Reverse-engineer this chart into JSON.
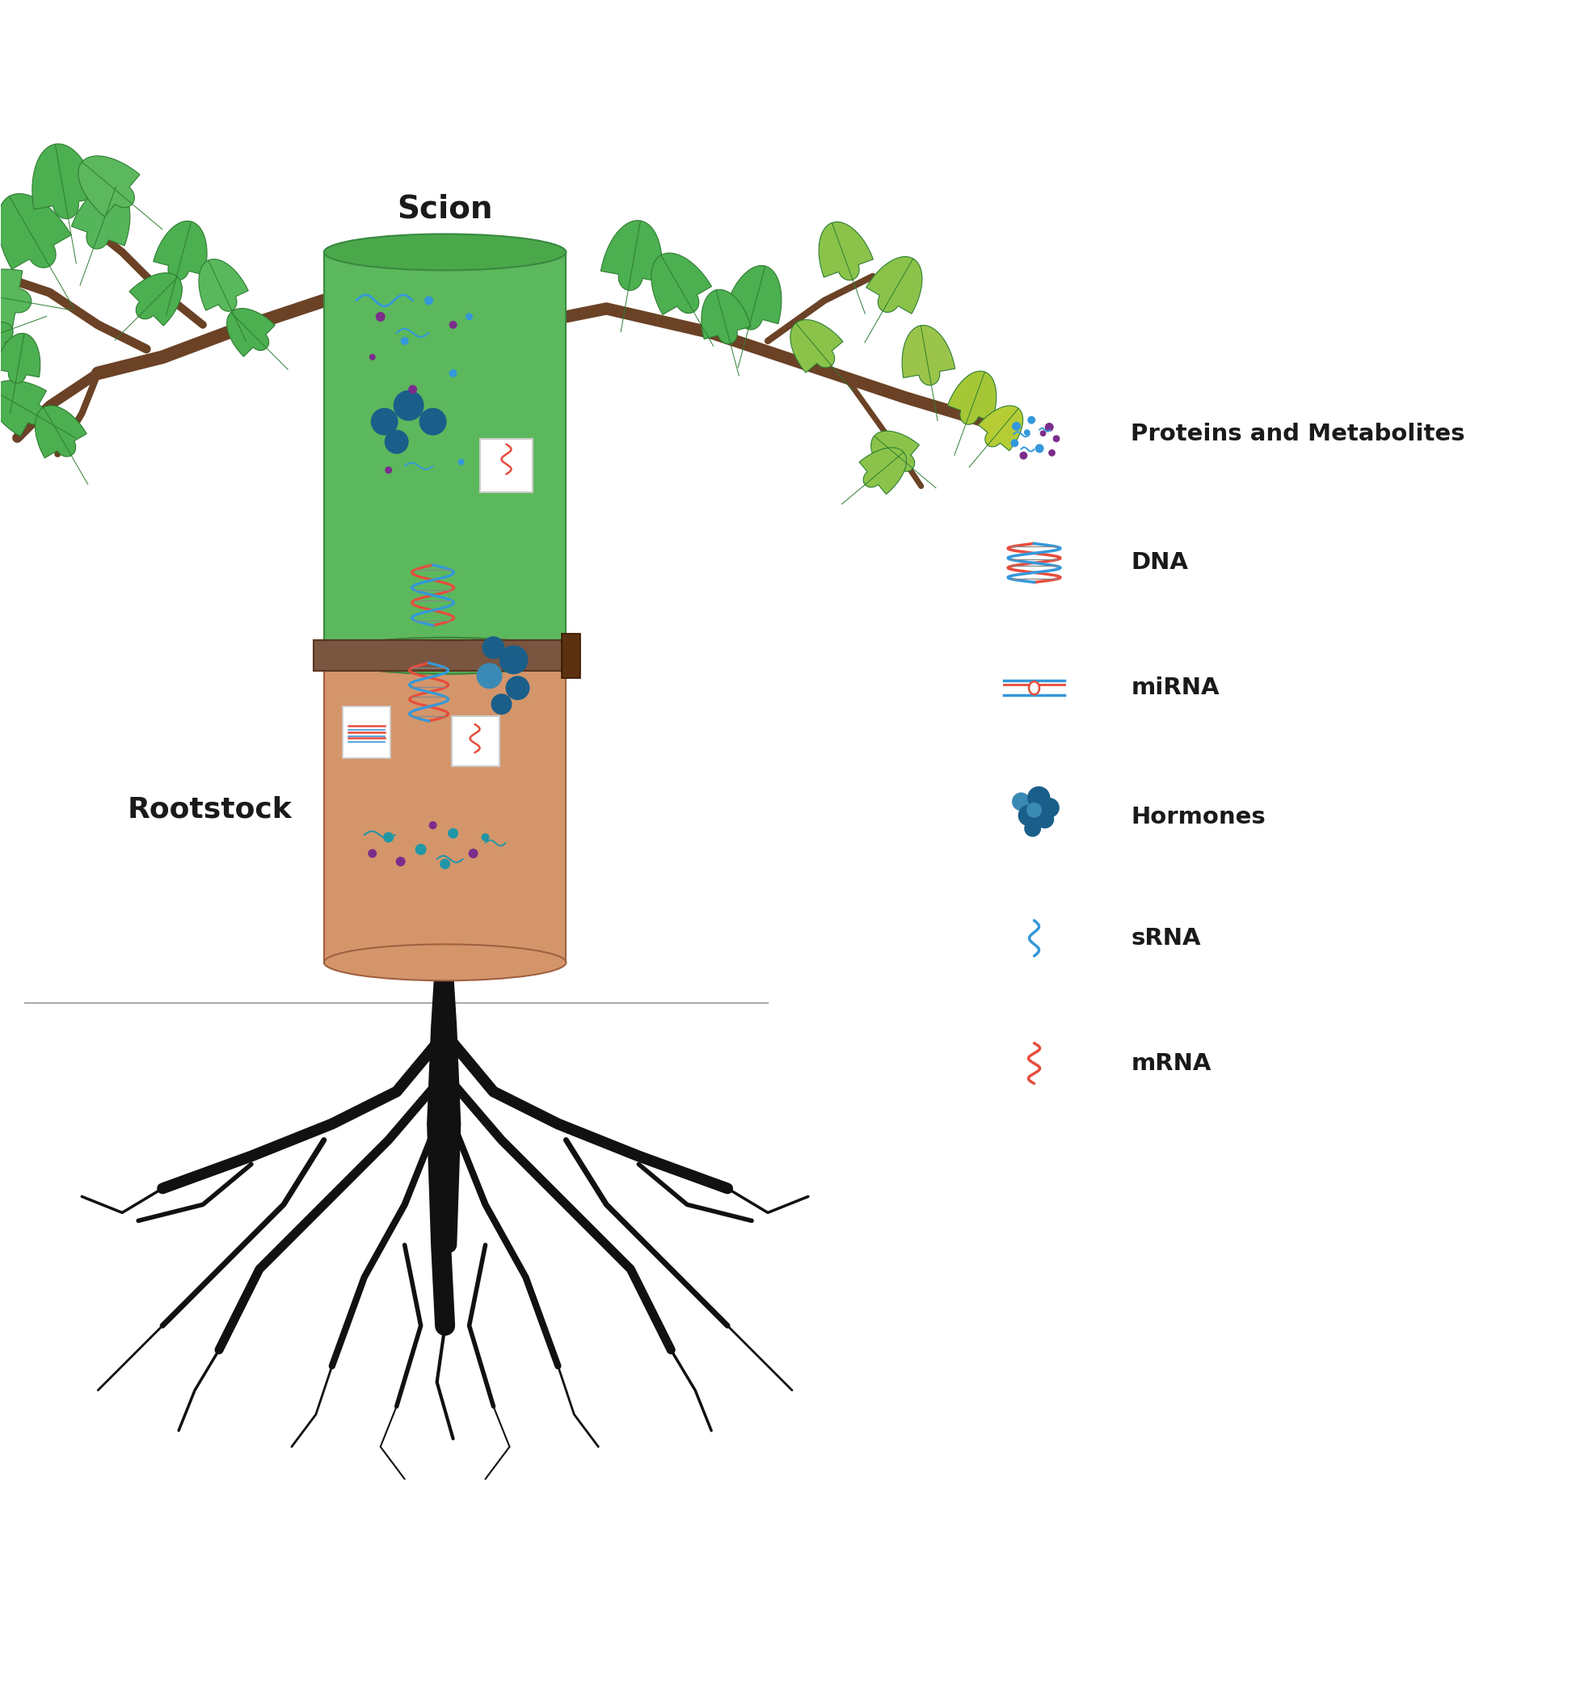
{
  "background_color": "#ffffff",
  "scion_color": "#5cb85c",
  "scion_dark": "#4aa84a",
  "scion_edge": "#3a8840",
  "rootstock_color": "#d4956a",
  "rootstock_dark": "#c07848",
  "rootstock_edge": "#a06040",
  "joint_color": "#7a5540",
  "joint_edge": "#5a3520",
  "scion_label": "Scion",
  "rootstock_label": "Rootstock",
  "branch_color": "#6b4226",
  "root_color": "#111111",
  "ground_color": "#aaaaaa",
  "legend_labels": [
    "Proteins and Metabolites",
    "DNA",
    "miRNA",
    "Hormones",
    "sRNA",
    "mRNA"
  ],
  "text_color": "#1a1a1a",
  "teal": "#2196a6",
  "purple": "#7b2d8b",
  "blue": "#3498db",
  "red": "#e74c3c",
  "dark_blue": "#1a5f8a",
  "mid_blue": "#3a8ab5"
}
